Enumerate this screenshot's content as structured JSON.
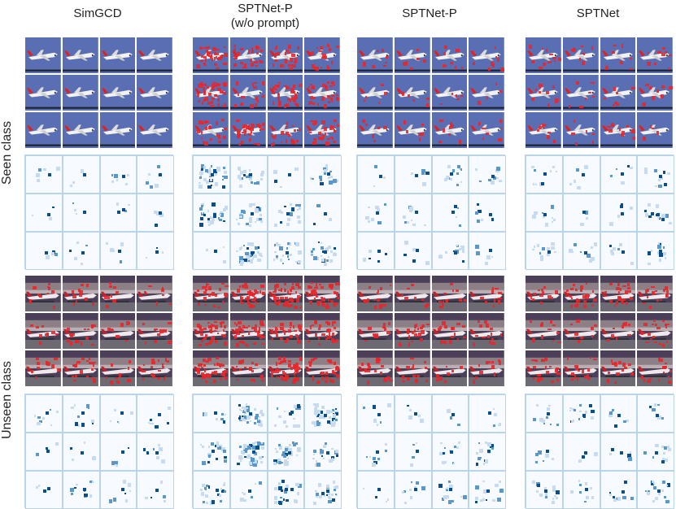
{
  "figure": {
    "columns": [
      {
        "title": "SimGCD"
      },
      {
        "title": "SPTNet-P\n(w/o prompt)"
      },
      {
        "title": "SPTNet-P"
      },
      {
        "title": "SPTNet"
      }
    ],
    "rows": [
      {
        "label": "Seen class"
      },
      {
        "label": "Unseen class"
      }
    ],
    "colors": {
      "seen_bg": "#5a6fb3",
      "unseen_bg": "#4b3f5a",
      "attention_red": "#e8262b",
      "heat_dark": "#0b4f8a",
      "heat_mid": "#5a98c9",
      "heat_light": "#c6dbef",
      "grid_line": "#b9d5ea"
    }
  }
}
